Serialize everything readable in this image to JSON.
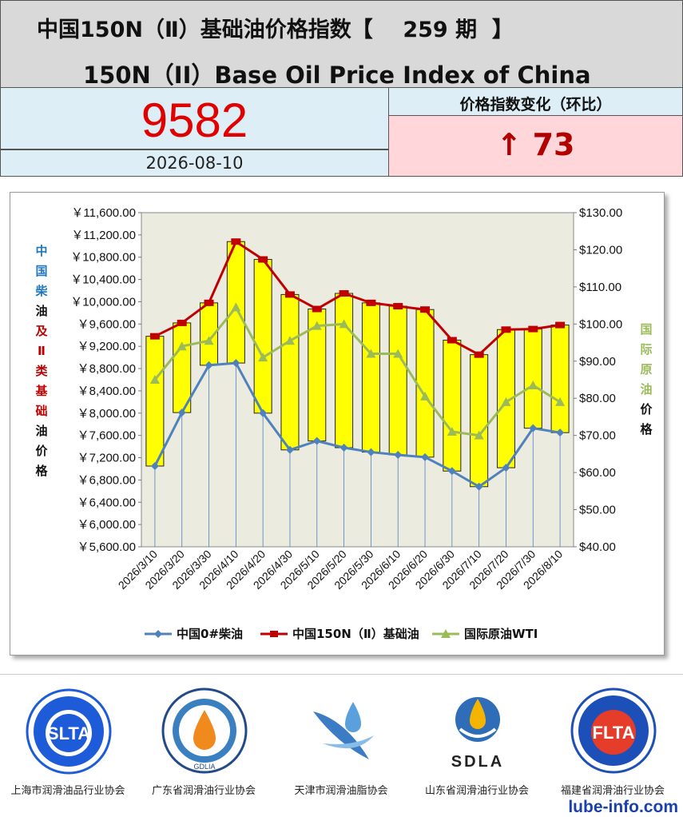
{
  "header": {
    "title_cn": "中国150N（Ⅱ）基础油价格指数【    259 期  】",
    "title_en": "150N（II）Base Oil Price Index of China"
  },
  "index": {
    "value": "9582",
    "date": "2026-08-10"
  },
  "change": {
    "title": "价格指数变化（环比）",
    "value": "↑ 73"
  },
  "chart_data": {
    "type": "line",
    "categories": [
      "2026/3/10",
      "2026/3/20",
      "2026/3/30",
      "2026/4/10",
      "2026/4/20",
      "2026/4/30",
      "2026/5/10",
      "2026/5/20",
      "2026/5/30",
      "2026/6/10",
      "2026/6/20",
      "2026/6/30",
      "2026/7/10",
      "2026/7/20",
      "2026/7/30",
      "2026/8/10"
    ],
    "series": [
      {
        "name": "中国0#柴油",
        "axis": "left",
        "color": "#4f81bd",
        "marker": "diamond",
        "values": [
          7050,
          8010,
          8860,
          8900,
          8000,
          7340,
          7500,
          7380,
          7300,
          7250,
          7210,
          6960,
          6680,
          7020,
          7730,
          7650
        ]
      },
      {
        "name": "中国150N（Ⅱ）基础油",
        "axis": "left",
        "color": "#c00000",
        "marker": "square",
        "values": [
          9380,
          9620,
          9980,
          11080,
          10760,
          10130,
          9870,
          10150,
          9980,
          9920,
          9860,
          9310,
          9050,
          9500,
          9510,
          9582
        ]
      },
      {
        "name": "国际原油WTI",
        "axis": "right",
        "color": "#9bbb59",
        "marker": "triangle",
        "values": [
          85,
          94,
          95.5,
          104.5,
          91,
          95.5,
          99.5,
          100,
          92,
          92,
          80.5,
          71,
          70,
          79,
          83.5,
          79
        ]
      }
    ],
    "y_left": {
      "min": 5600,
      "max": 11600,
      "step": 400,
      "label": "中国柴油及Ⅱ类基础油价格"
    },
    "y_right": {
      "min": 40,
      "max": 130,
      "step": 10,
      "label": "国际原油价格"
    },
    "y_left_ticks": [
      "￥11,600.00",
      "￥11,200.00",
      "￥10,800.00",
      "￥10,400.00",
      "￥10,000.00",
      "￥9,600.00",
      "￥9,200.00",
      "￥8,800.00",
      "￥8,400.00",
      "￥8,000.00",
      "￥7,600.00",
      "￥7,200.00",
      "￥6,800.00",
      "￥6,400.00",
      "￥6,000.00",
      "￥5,600.00"
    ],
    "y_right_ticks": [
      "$130.00",
      "$120.00",
      "$110.00",
      "$100.00",
      "$90.00",
      "$80.00",
      "$70.00",
      "$60.00",
      "$50.00",
      "$40.00"
    ],
    "legend_position": "bottom",
    "grid": false
  },
  "orgs": [
    {
      "name": "上海市润滑油品行业协会",
      "abbr": "SLTA"
    },
    {
      "name": "广东省润滑油行业协会",
      "abbr": "GDLIA"
    },
    {
      "name": "天津市润滑油脂协会",
      "abbr": ""
    },
    {
      "name": "山东省润滑油行业协会",
      "abbr": "SDLA"
    },
    {
      "name": "福建省润滑油行业协会",
      "abbr": "FLTA"
    }
  ],
  "website": "lube-info.com"
}
